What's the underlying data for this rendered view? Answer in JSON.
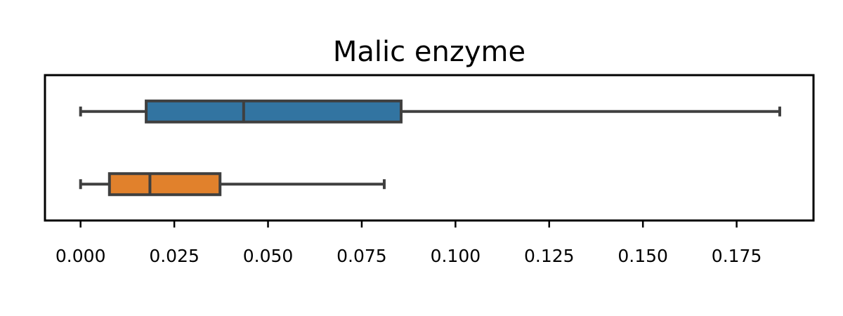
{
  "chart_data": {
    "type": "boxplot",
    "orientation": "horizontal",
    "title": "Malic enzyme",
    "xlabel": "",
    "ylabel": "",
    "xlim": [
      -0.0095,
      0.1955
    ],
    "xticks": [
      0.0,
      0.025,
      0.05,
      0.075,
      0.1,
      0.125,
      0.15,
      0.175
    ],
    "xtick_labels": [
      "0.000",
      "0.025",
      "0.050",
      "0.075",
      "0.100",
      "0.125",
      "0.150",
      "0.175"
    ],
    "grid": false,
    "legend": "none",
    "series": [
      {
        "color": "#3274a1",
        "whisker_low": 0.0,
        "q1": 0.0175,
        "median": 0.0435,
        "q3": 0.0855,
        "whisker_high": 0.1865
      },
      {
        "color": "#e1812c",
        "whisker_low": 0.0,
        "q1": 0.0077,
        "median": 0.0185,
        "q3": 0.0372,
        "whisker_high": 0.081
      }
    ]
  }
}
